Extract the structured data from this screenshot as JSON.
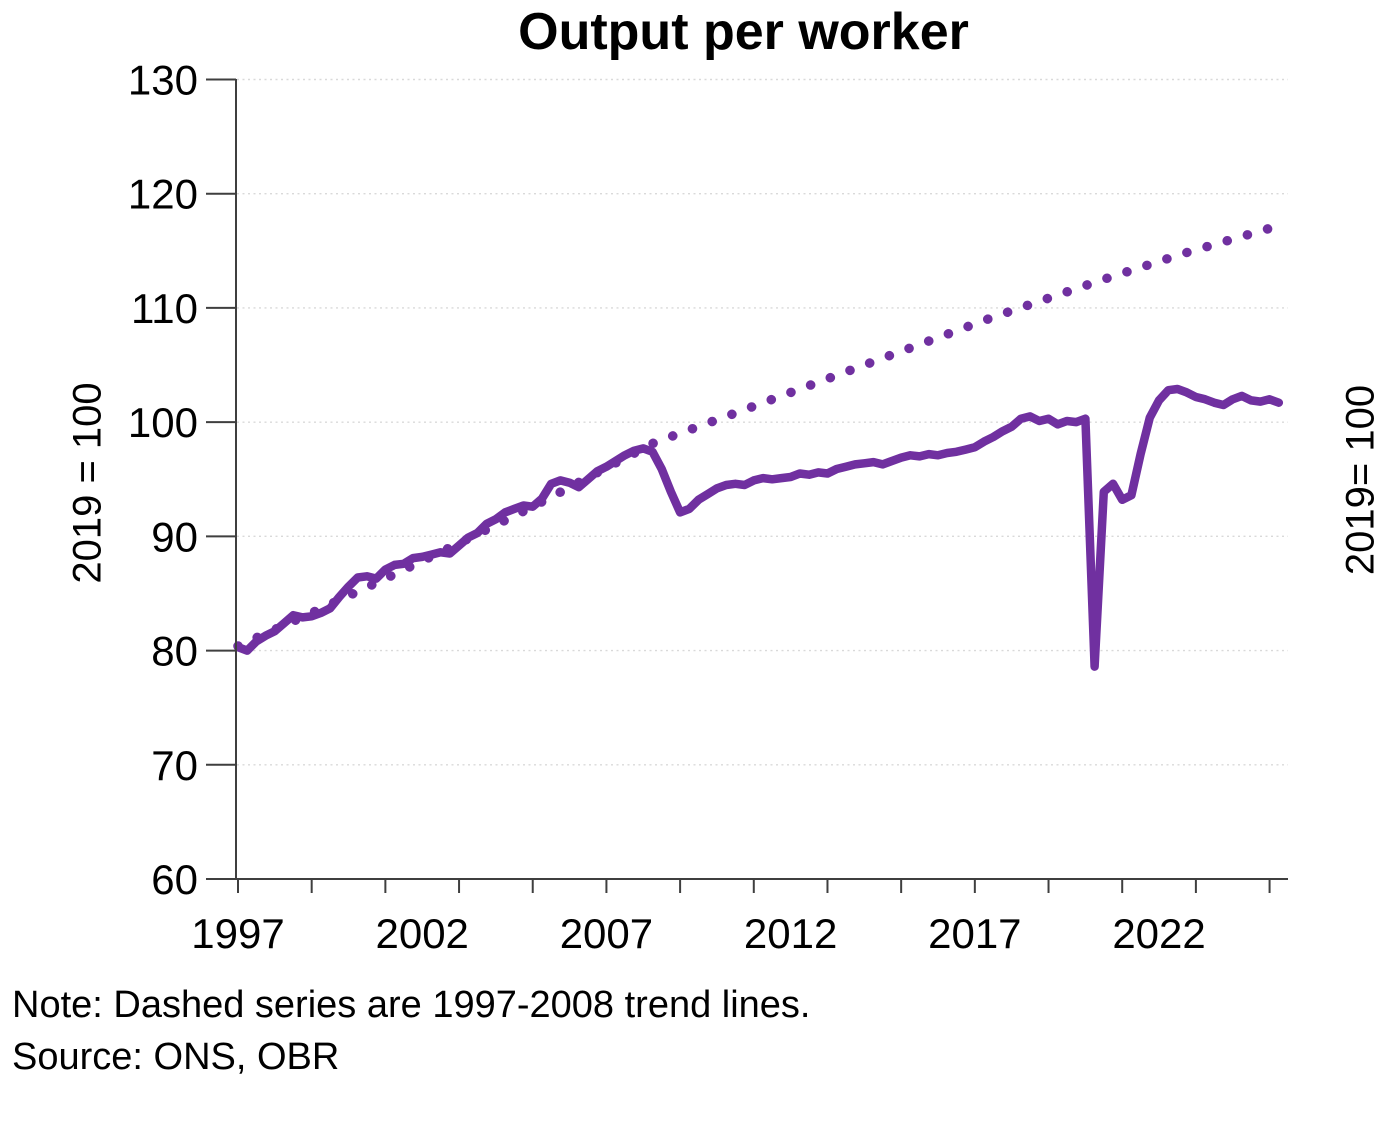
{
  "chart": {
    "title": "Output per worker",
    "note": "Note: Dashed series are 1997-2008 trend lines.",
    "source": "Source: ONS, OBR",
    "y_axis_label_left": "2019 = 100",
    "y_axis_label_right": "2019= 100",
    "accent_color": "#7030a0",
    "grid_color": "#d9d9d9",
    "axis_color": "#3f3f3f"
  },
  "chart_data": {
    "type": "line",
    "title": "Output per worker",
    "ylabel": "2019 = 100",
    "ylabel_right": "2019= 100",
    "ylim": [
      60,
      130
    ],
    "y_ticks": [
      60,
      70,
      80,
      90,
      100,
      110,
      120,
      130
    ],
    "xlim": [
      1996.95,
      2025.5
    ],
    "x_minor_tick_years": [
      1997,
      1999,
      2001,
      2003,
      2005,
      2007,
      2009,
      2011,
      2013,
      2015,
      2017,
      2019,
      2021,
      2023,
      2025
    ],
    "x_labeled_ticks": [
      "1997",
      "2002",
      "2007",
      "2012",
      "2017",
      "2022"
    ],
    "x_labeled_tick_years": [
      1997,
      2002,
      2007,
      2012,
      2017,
      2022
    ],
    "grid": "horizontal dotted",
    "legend": "none",
    "annotation": "Dashed series are 1997-2008 trend lines.",
    "series": [
      {
        "name": "Output per worker (outturn)",
        "style": "solid",
        "color": "#7030a0",
        "points": [
          [
            1997.0,
            80.3
          ],
          [
            1997.25,
            80.0
          ],
          [
            1997.5,
            80.8
          ],
          [
            1997.75,
            81.3
          ],
          [
            1998.0,
            81.7
          ],
          [
            1998.25,
            82.4
          ],
          [
            1998.5,
            83.1
          ],
          [
            1998.75,
            82.9
          ],
          [
            1999.0,
            83.0
          ],
          [
            1999.25,
            83.3
          ],
          [
            1999.5,
            83.7
          ],
          [
            1999.75,
            84.7
          ],
          [
            2000.0,
            85.6
          ],
          [
            2000.25,
            86.4
          ],
          [
            2000.5,
            86.5
          ],
          [
            2000.75,
            86.3
          ],
          [
            2001.0,
            87.1
          ],
          [
            2001.25,
            87.5
          ],
          [
            2001.5,
            87.6
          ],
          [
            2001.75,
            88.1
          ],
          [
            2002.0,
            88.2
          ],
          [
            2002.25,
            88.4
          ],
          [
            2002.5,
            88.6
          ],
          [
            2002.75,
            88.5
          ],
          [
            2003.0,
            89.2
          ],
          [
            2003.25,
            89.9
          ],
          [
            2003.5,
            90.3
          ],
          [
            2003.75,
            91.1
          ],
          [
            2004.0,
            91.5
          ],
          [
            2004.25,
            92.1
          ],
          [
            2004.5,
            92.4
          ],
          [
            2004.75,
            92.7
          ],
          [
            2005.0,
            92.6
          ],
          [
            2005.25,
            93.3
          ],
          [
            2005.5,
            94.6
          ],
          [
            2005.75,
            94.9
          ],
          [
            2006.0,
            94.7
          ],
          [
            2006.25,
            94.3
          ],
          [
            2006.5,
            95.0
          ],
          [
            2006.75,
            95.7
          ],
          [
            2007.0,
            96.1
          ],
          [
            2007.25,
            96.6
          ],
          [
            2007.5,
            97.1
          ],
          [
            2007.75,
            97.5
          ],
          [
            2008.0,
            97.7
          ],
          [
            2008.25,
            97.4
          ],
          [
            2008.5,
            95.9
          ],
          [
            2008.75,
            93.9
          ],
          [
            2009.0,
            92.1
          ],
          [
            2009.25,
            92.4
          ],
          [
            2009.5,
            93.2
          ],
          [
            2009.75,
            93.7
          ],
          [
            2010.0,
            94.2
          ],
          [
            2010.25,
            94.5
          ],
          [
            2010.5,
            94.6
          ],
          [
            2010.75,
            94.5
          ],
          [
            2011.0,
            94.9
          ],
          [
            2011.25,
            95.1
          ],
          [
            2011.5,
            95.0
          ],
          [
            2011.75,
            95.1
          ],
          [
            2012.0,
            95.2
          ],
          [
            2012.25,
            95.5
          ],
          [
            2012.5,
            95.4
          ],
          [
            2012.75,
            95.6
          ],
          [
            2013.0,
            95.5
          ],
          [
            2013.25,
            95.9
          ],
          [
            2013.5,
            96.1
          ],
          [
            2013.75,
            96.3
          ],
          [
            2014.0,
            96.4
          ],
          [
            2014.25,
            96.5
          ],
          [
            2014.5,
            96.3
          ],
          [
            2014.75,
            96.6
          ],
          [
            2015.0,
            96.9
          ],
          [
            2015.25,
            97.1
          ],
          [
            2015.5,
            97.0
          ],
          [
            2015.75,
            97.2
          ],
          [
            2016.0,
            97.1
          ],
          [
            2016.25,
            97.3
          ],
          [
            2016.5,
            97.4
          ],
          [
            2016.75,
            97.6
          ],
          [
            2017.0,
            97.8
          ],
          [
            2017.25,
            98.3
          ],
          [
            2017.5,
            98.7
          ],
          [
            2017.75,
            99.2
          ],
          [
            2018.0,
            99.6
          ],
          [
            2018.25,
            100.3
          ],
          [
            2018.5,
            100.5
          ],
          [
            2018.75,
            100.1
          ],
          [
            2019.0,
            100.3
          ],
          [
            2019.25,
            99.8
          ],
          [
            2019.5,
            100.1
          ],
          [
            2019.75,
            100.0
          ],
          [
            2020.0,
            100.3
          ],
          [
            2020.25,
            78.6
          ],
          [
            2020.5,
            93.9
          ],
          [
            2020.75,
            94.6
          ],
          [
            2021.0,
            93.2
          ],
          [
            2021.25,
            93.6
          ],
          [
            2021.5,
            97.2
          ],
          [
            2021.75,
            100.4
          ],
          [
            2022.0,
            101.9
          ],
          [
            2022.25,
            102.8
          ],
          [
            2022.5,
            102.9
          ],
          [
            2022.75,
            102.6
          ],
          [
            2023.0,
            102.2
          ],
          [
            2023.25,
            102.0
          ],
          [
            2023.5,
            101.7
          ],
          [
            2023.75,
            101.5
          ],
          [
            2024.0,
            102.0
          ],
          [
            2024.25,
            102.3
          ],
          [
            2024.5,
            101.9
          ],
          [
            2024.75,
            101.8
          ],
          [
            2025.0,
            102.0
          ],
          [
            2025.25,
            101.7
          ]
        ]
      },
      {
        "name": "1997-2008 trend line",
        "style": "dotted",
        "color": "#7030a0",
        "points": [
          [
            1997.0,
            80.4
          ],
          [
            1999.0,
            83.3
          ],
          [
            2001.0,
            86.3
          ],
          [
            2003.0,
            89.4
          ],
          [
            2005.0,
            92.6
          ],
          [
            2007.0,
            96.0
          ],
          [
            2008.3,
            98.2
          ],
          [
            2010.5,
            100.8
          ],
          [
            2012.5,
            103.2
          ],
          [
            2015.0,
            106.2
          ],
          [
            2017.5,
            109.2
          ],
          [
            2020.4,
            112.4
          ],
          [
            2022.7,
            114.8
          ],
          [
            2025.35,
            117.3
          ]
        ]
      }
    ]
  }
}
